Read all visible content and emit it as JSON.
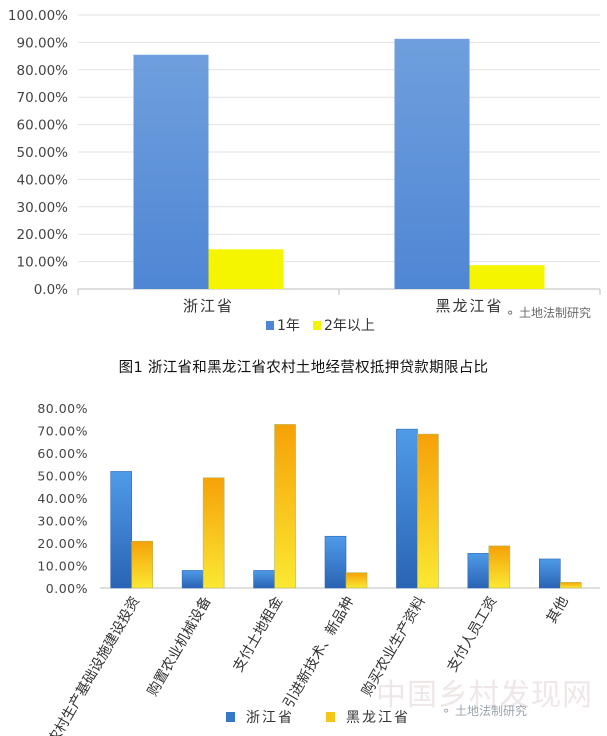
{
  "caption": "图1 浙江省和黑龙江省农村土地经营权抵押贷款期限占比",
  "watermarks": {
    "top": "土地法制研究",
    "bottom": "土地法制研究",
    "bottom_big": "中国乡村发现网"
  },
  "colors": {
    "blue": "#5b8fd6",
    "yellow": "#f5f500",
    "orange": "#f7a20a",
    "axis": "#bdbdbd",
    "grid": "#e2e2e2"
  },
  "chart_data": [
    {
      "type": "bar",
      "title": "",
      "xlabel": "",
      "ylabel": "",
      "ylim": [
        0,
        100
      ],
      "grid": true,
      "legend_position": "bottom",
      "y_ticks": [
        "0.0%",
        "10.00%",
        "20.00%",
        "30.00%",
        "40.00%",
        "50.00%",
        "60.00%",
        "70.00%",
        "80.00%",
        "90.00%",
        "100.00%"
      ],
      "categories": [
        "浙江省",
        "黑龙江省"
      ],
      "series": [
        {
          "name": "1年",
          "values": [
            85.5,
            91.3
          ]
        },
        {
          "name": "2年以上",
          "values": [
            14.5,
            8.7
          ]
        }
      ]
    },
    {
      "type": "bar",
      "title": "",
      "xlabel": "",
      "ylabel": "",
      "ylim": [
        0,
        80
      ],
      "grid": false,
      "legend_position": "bottom",
      "y_ticks": [
        "0.00%",
        "10.00%",
        "20.00%",
        "30.00%",
        "40.00%",
        "50.00%",
        "60.00%",
        "70.00%",
        "80.00%"
      ],
      "categories": [
        "农村生产基础设施建设投资",
        "购置农业机械设备",
        "支付土地租金",
        "引进新技术、新品种",
        "购买农业生产资料",
        "支付人员工资",
        "其他"
      ],
      "series": [
        {
          "name": "浙江省",
          "values": [
            51.8,
            7.8,
            7.8,
            23.0,
            70.6,
            15.4,
            12.9
          ]
        },
        {
          "name": "黑龙江省",
          "values": [
            20.8,
            49.0,
            72.7,
            6.8,
            68.4,
            18.7,
            2.5
          ]
        }
      ]
    }
  ]
}
